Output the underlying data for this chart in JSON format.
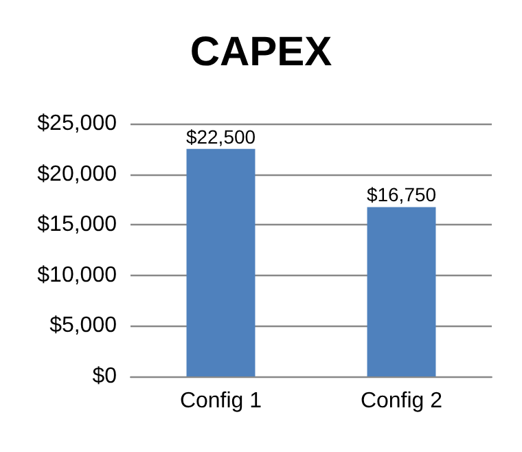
{
  "chart_data": {
    "type": "bar",
    "title": "CAPEX",
    "categories": [
      "Config 1",
      "Config 2"
    ],
    "values": [
      22500,
      16750
    ],
    "color": "#4f81bd",
    "value_labels": [
      "$22,500",
      "$16,750"
    ],
    "ylim": [
      0,
      25000
    ],
    "yticks": [
      {
        "value": 0,
        "label": "$0"
      },
      {
        "value": 5000,
        "label": "$5,000"
      },
      {
        "value": 10000,
        "label": "$10,000"
      },
      {
        "value": 15000,
        "label": "$15,000"
      },
      {
        "value": 20000,
        "label": "$20,000"
      },
      {
        "value": 25000,
        "label": "$25,000"
      }
    ],
    "grid": true
  }
}
